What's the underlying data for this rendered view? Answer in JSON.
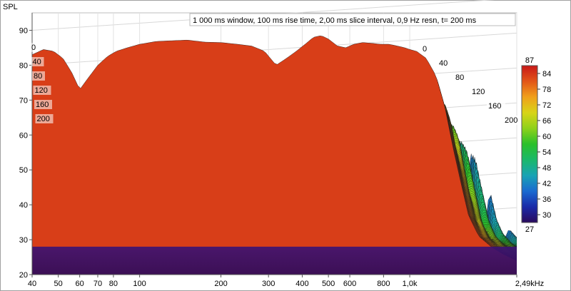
{
  "chart_data": {
    "type": "waterfall",
    "title": "1 000 ms window, 100 ms rise time, 2,00 ms slice interval, 0,9 Hz resn, t= 200 ms",
    "ylabel": "SPL",
    "xlabel": "",
    "x_scale": "log",
    "xlim": [
      40,
      2490
    ],
    "ylim": [
      20,
      95
    ],
    "grid": true,
    "x_ticks": [
      "40",
      "50",
      "60",
      "70",
      "80",
      "100",
      "200",
      "300",
      "400",
      "500",
      "600",
      "800",
      "1,0k",
      "2,49kHz"
    ],
    "x_tick_values": [
      40,
      50,
      60,
      70,
      80,
      100,
      200,
      300,
      400,
      500,
      600,
      800,
      1000,
      2490
    ],
    "y_ticks": [
      "20",
      "30",
      "40",
      "50",
      "60",
      "70",
      "80",
      "90"
    ],
    "y_tick_values": [
      20,
      30,
      40,
      50,
      60,
      70,
      80,
      90
    ],
    "time_labels_left": [
      "0",
      "40",
      "80",
      "120",
      "160",
      "200"
    ],
    "time_labels_right": [
      "0",
      "40",
      "80",
      "120",
      "160",
      "200"
    ],
    "time_slices_ms": [
      0,
      200
    ],
    "front_slice_spl": {
      "freq_hz": [
        40,
        44,
        48,
        52,
        56,
        60,
        64,
        70,
        76,
        82,
        90,
        100,
        115,
        130,
        150,
        175,
        200,
        230,
        260,
        290,
        320,
        350,
        380,
        410,
        440,
        470,
        500,
        540,
        580,
        620,
        670,
        720,
        780,
        840,
        900,
        960,
        1000,
        1060,
        1150,
        1250,
        1350,
        1450,
        1550,
        1650,
        1800,
        2000,
        2200,
        2490
      ],
      "spl_db": [
        83,
        84.5,
        84,
        82,
        78,
        73,
        76,
        80,
        82.5,
        84,
        85,
        86,
        86.8,
        87,
        87.2,
        86.6,
        86.5,
        86,
        85.5,
        84,
        80,
        82,
        84,
        86,
        88,
        88.5,
        87.5,
        85.5,
        85,
        86,
        86.5,
        86.3,
        86,
        86,
        85.5,
        85,
        84.5,
        84,
        82,
        77,
        68,
        56,
        46,
        37,
        31,
        28,
        26,
        24
      ]
    },
    "colorbar": {
      "min": 27,
      "max": 87,
      "ticks": [
        "84",
        "78",
        "72",
        "66",
        "60",
        "54",
        "48",
        "42",
        "36",
        "30"
      ],
      "tick_values": [
        84,
        78,
        72,
        66,
        60,
        54,
        48,
        42,
        36,
        30
      ],
      "min_label": "27",
      "max_label": "87",
      "colors": [
        "#2a0a5c",
        "#1a2aa8",
        "#1a6ad0",
        "#18a3b4",
        "#1ab86a",
        "#2ac02a",
        "#8ed11a",
        "#d8d418",
        "#f0a01a",
        "#e25518",
        "#c81818"
      ]
    }
  }
}
